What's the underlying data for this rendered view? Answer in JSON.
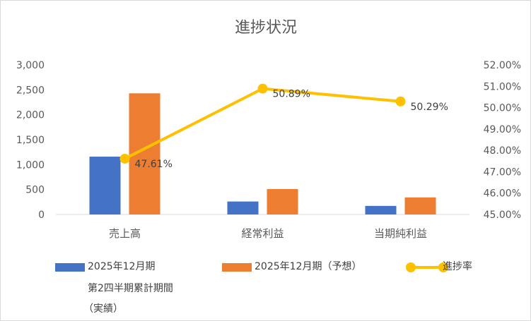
{
  "chart_data": {
    "type": "bar",
    "title": "進捗状況",
    "categories": [
      "売上高",
      "経常利益",
      "当期純利益"
    ],
    "series": [
      {
        "name": "2025年12月期 第2四半期累計期間 （実績）",
        "type": "bar",
        "axis": "left",
        "color": "#4472C4",
        "values": [
          1160,
          260,
          172
        ]
      },
      {
        "name": "2025年12月期（予想）",
        "type": "bar",
        "axis": "left",
        "color": "#ED7D31",
        "values": [
          2430,
          510,
          342
        ]
      },
      {
        "name": "進捗率",
        "type": "line",
        "axis": "right",
        "color": "#FFC000",
        "values": [
          47.61,
          50.89,
          50.29
        ],
        "labels": [
          "47.61%",
          "50.89%",
          "50.29%"
        ]
      }
    ],
    "y_left": {
      "min": 0,
      "max": 3000,
      "ticks": [
        "0",
        "500",
        "1,000",
        "1,500",
        "2,000",
        "2,500",
        "3,000"
      ]
    },
    "y_right": {
      "min": 45,
      "max": 52,
      "ticks": [
        "45.00%",
        "46.00%",
        "47.00%",
        "48.00%",
        "49.00%",
        "50.00%",
        "51.00%",
        "52.00%"
      ]
    },
    "grid": false,
    "legend_position": "bottom"
  },
  "legend": {
    "s1_line1": "2025年12月期",
    "s1_line2": "第2四半期累計期間",
    "s1_line3": "（実績）",
    "s2": "2025年12月期（予想）",
    "s3": "進捗率"
  }
}
